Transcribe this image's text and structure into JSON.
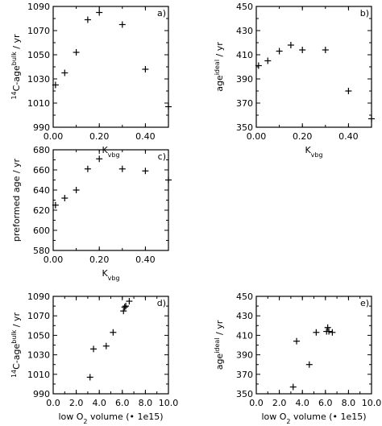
{
  "panels": [
    {
      "id": "a",
      "panel_label": "a)",
      "ylabel_parts": [
        {
          "t": "14",
          "s": "sup"
        },
        {
          "t": "C-age",
          "s": ""
        },
        {
          "t": "bulk",
          "s": "sup"
        },
        {
          "t": " / yr",
          "s": ""
        }
      ],
      "xlabel_parts": [
        {
          "t": "K",
          "s": ""
        },
        {
          "t": "vbg",
          "s": "sub"
        }
      ]
    },
    {
      "id": "b",
      "panel_label": "b)",
      "ylabel_parts": [
        {
          "t": "age",
          "s": ""
        },
        {
          "t": "ideal",
          "s": "sup"
        },
        {
          "t": " / yr",
          "s": ""
        }
      ],
      "xlabel_parts": [
        {
          "t": "K",
          "s": ""
        },
        {
          "t": "vbg",
          "s": "sub"
        }
      ]
    },
    {
      "id": "c",
      "panel_label": "c)",
      "ylabel_parts": [
        {
          "t": "preformed age / yr",
          "s": ""
        }
      ],
      "xlabel_parts": [
        {
          "t": "K",
          "s": ""
        },
        {
          "t": "vbg",
          "s": "sub"
        }
      ]
    },
    {
      "id": "d",
      "panel_label": "d)",
      "ylabel_parts": [
        {
          "t": "14",
          "s": "sup"
        },
        {
          "t": "C-age",
          "s": ""
        },
        {
          "t": "bulk",
          "s": "sup"
        },
        {
          "t": " / yr",
          "s": ""
        }
      ],
      "xlabel_parts": [
        {
          "t": "low O",
          "s": ""
        },
        {
          "t": "2",
          "s": "sub"
        },
        {
          "t": " volume (• 1e15)",
          "s": ""
        }
      ]
    },
    {
      "id": "e",
      "panel_label": "e)",
      "ylabel_parts": [
        {
          "t": "age",
          "s": ""
        },
        {
          "t": "ideal",
          "s": "sup"
        },
        {
          "t": " / yr",
          "s": ""
        }
      ],
      "xlabel_parts": [
        {
          "t": "low O",
          "s": ""
        },
        {
          "t": "2",
          "s": "sub"
        },
        {
          "t": " volume (• 1e15)",
          "s": ""
        }
      ]
    }
  ],
  "chart_data": [
    {
      "type": "scatter",
      "panel": "a",
      "marker": "+",
      "x": [
        0.01,
        0.05,
        0.1,
        0.15,
        0.2,
        0.3,
        0.4,
        0.5
      ],
      "y": [
        1025,
        1035,
        1052,
        1079,
        1085,
        1075,
        1038,
        1007
      ],
      "xlim": [
        0.0,
        0.5
      ],
      "ylim": [
        990,
        1090
      ],
      "xticks": [
        "0.00",
        "0.20",
        "0.40"
      ],
      "yticks": [
        "990",
        "1010",
        "1030",
        "1050",
        "1070",
        "1090"
      ]
    },
    {
      "type": "scatter",
      "panel": "b",
      "marker": "+",
      "x": [
        0.01,
        0.05,
        0.1,
        0.15,
        0.2,
        0.3,
        0.4,
        0.5
      ],
      "y": [
        401,
        405,
        413,
        418,
        414,
        414,
        380,
        357
      ],
      "xlim": [
        0.0,
        0.5
      ],
      "ylim": [
        350,
        450
      ],
      "xticks": [
        "0.00",
        "0.20",
        "0.40"
      ],
      "yticks": [
        "350",
        "370",
        "390",
        "410",
        "430",
        "450"
      ]
    },
    {
      "type": "scatter",
      "panel": "c",
      "marker": "+",
      "x": [
        0.01,
        0.05,
        0.1,
        0.15,
        0.2,
        0.3,
        0.4,
        0.5
      ],
      "y": [
        625,
        632,
        640,
        661,
        671,
        661,
        659,
        650
      ],
      "xlim": [
        0.0,
        0.5
      ],
      "ylim": [
        580,
        680
      ],
      "xticks": [
        "0.00",
        "0.20",
        "0.40"
      ],
      "yticks": [
        "580",
        "600",
        "620",
        "640",
        "660",
        "680"
      ]
    },
    {
      "type": "scatter",
      "panel": "d",
      "marker": "+",
      "x": [
        3.2,
        3.5,
        4.6,
        5.2,
        6.1,
        6.2,
        6.3,
        6.6
      ],
      "y": [
        1007,
        1036,
        1039,
        1053,
        1075,
        1079,
        1080,
        1085
      ],
      "xlim": [
        0.0,
        10.0
      ],
      "ylim": [
        990,
        1090
      ],
      "xticks": [
        "0.0",
        "2.0",
        "4.0",
        "6.0",
        "8.0",
        "10.0"
      ],
      "yticks": [
        "990",
        "1010",
        "1030",
        "1050",
        "1070",
        "1090"
      ]
    },
    {
      "type": "scatter",
      "panel": "e",
      "marker": "+",
      "x": [
        3.2,
        3.5,
        4.6,
        5.2,
        6.1,
        6.2,
        6.3,
        6.6
      ],
      "y": [
        357,
        404,
        380,
        413,
        414,
        418,
        414,
        413
      ],
      "xlim": [
        0.0,
        10.0
      ],
      "ylim": [
        350,
        450
      ],
      "xticks": [
        "0.0",
        "2.0",
        "4.0",
        "6.0",
        "8.0",
        "10.0"
      ],
      "yticks": [
        "350",
        "370",
        "390",
        "410",
        "430",
        "450"
      ]
    }
  ]
}
